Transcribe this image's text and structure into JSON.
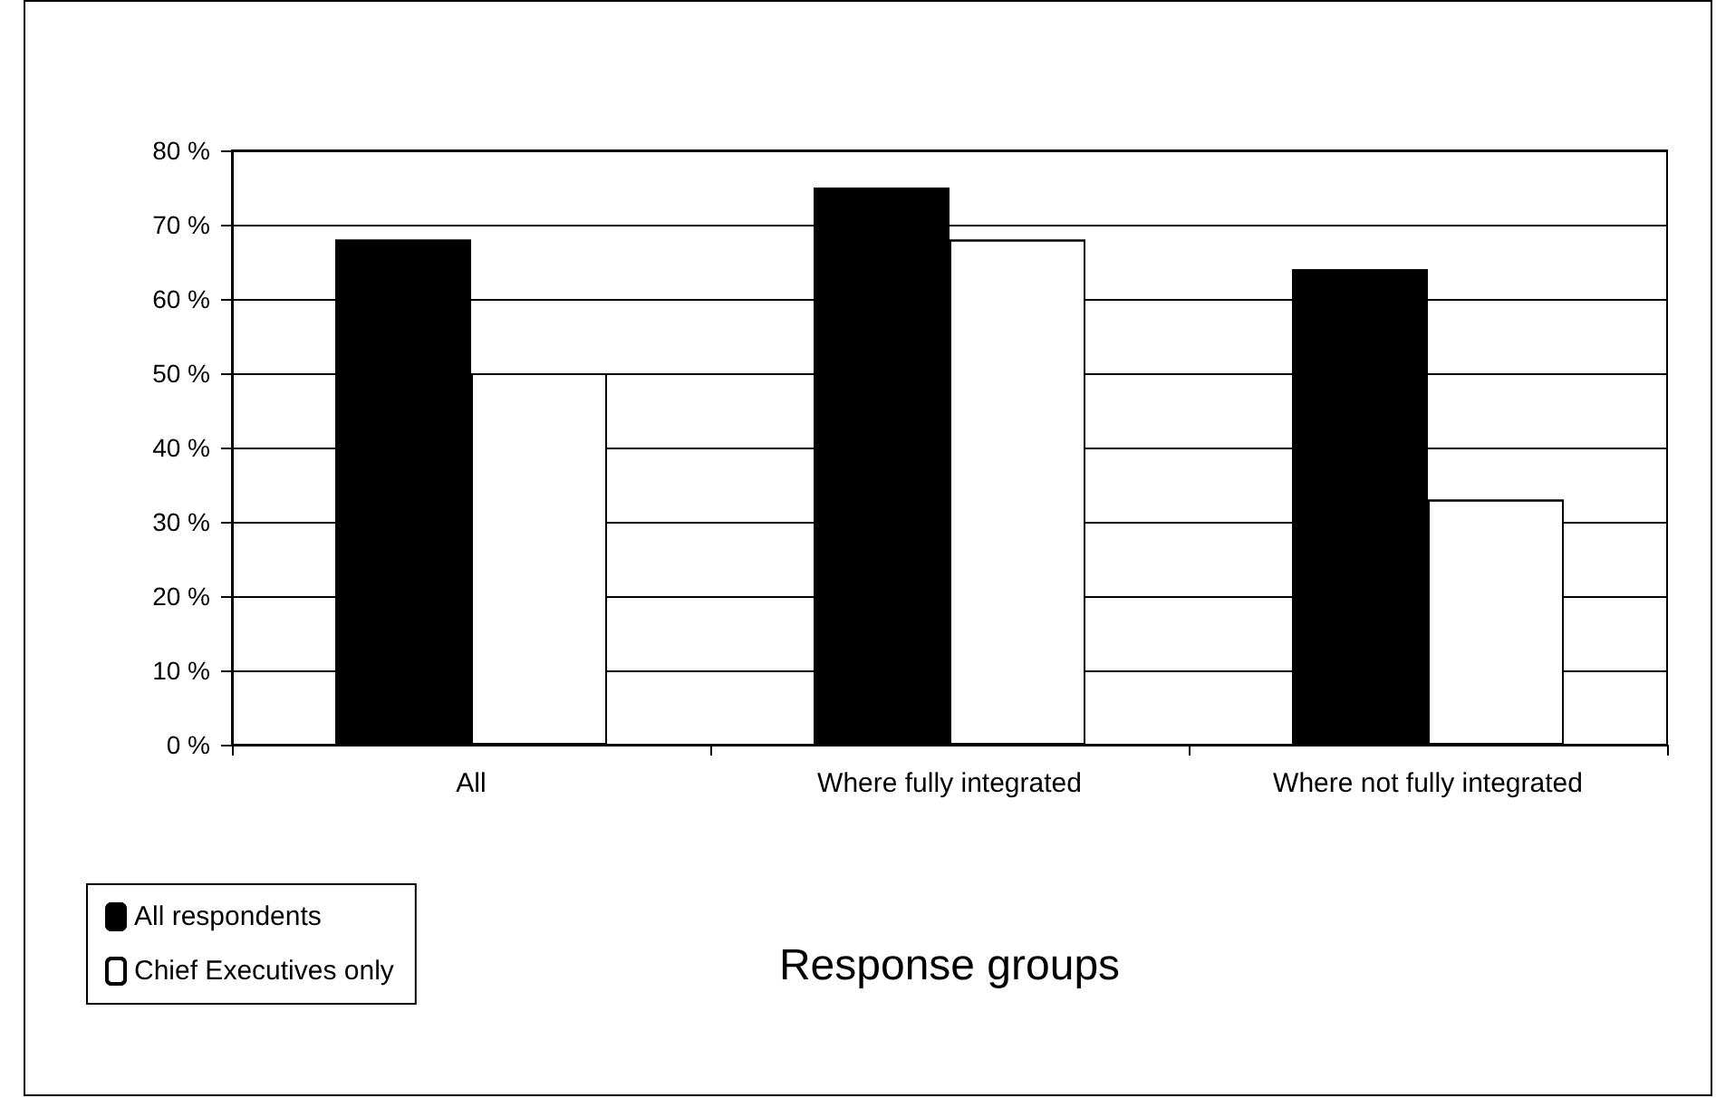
{
  "chart_data": {
    "type": "bar",
    "xlabel": "Response groups",
    "categories": [
      "All",
      "Where fully integrated",
      "Where not fully integrated"
    ],
    "series": [
      {
        "name": "All respondents",
        "color": "#000000",
        "values": [
          68,
          75,
          64
        ]
      },
      {
        "name": "Chief Executives only",
        "color": "#ffffff",
        "values": [
          50,
          68,
          33
        ]
      }
    ],
    "ylim": [
      0,
      80
    ],
    "yticks": [
      {
        "value": 0,
        "label": "0 %"
      },
      {
        "value": 10,
        "label": "10 %"
      },
      {
        "value": 20,
        "label": "20 %"
      },
      {
        "value": 30,
        "label": "30 %"
      },
      {
        "value": 40,
        "label": "40 %"
      },
      {
        "value": 50,
        "label": "50 %"
      },
      {
        "value": 60,
        "label": "60 %"
      },
      {
        "value": 70,
        "label": "70 %"
      },
      {
        "value": 80,
        "label": "80 %"
      }
    ],
    "grid": "y",
    "legend": "bottom left"
  }
}
